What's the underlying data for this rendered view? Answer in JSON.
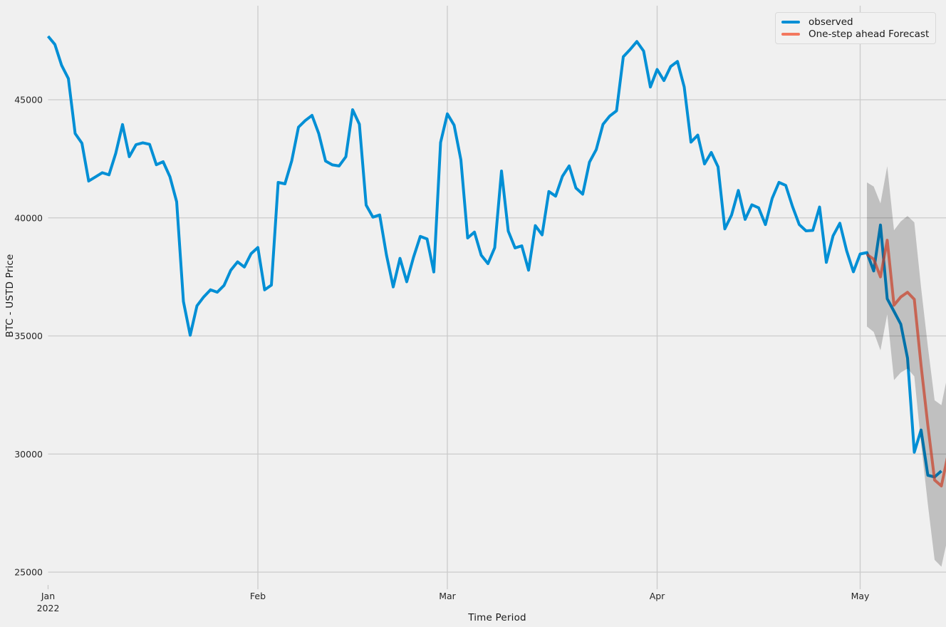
{
  "figure": {
    "background": "#f0f0f0",
    "grid_color": "#cbcbcb",
    "tick_color": "#262626",
    "label_color": "#1a1a1a"
  },
  "legend": {
    "position": "upper right",
    "items": [
      {
        "label": "observed",
        "color": "#008fd5"
      },
      {
        "label": "One-step ahead Forecast",
        "color": "#f3785f"
      }
    ]
  },
  "chart_data": {
    "type": "line",
    "title": "",
    "xlabel": "Time Period",
    "ylabel": "BTC - USTD Price",
    "grid": true,
    "legend_position": "upper right",
    "x_unit": "days since 2022-01-01",
    "xlim": [
      0,
      133
    ],
    "ylim": [
      24457,
      48982
    ],
    "x_ticks": [
      {
        "day": 0,
        "label": "Jan",
        "sublabel": "2022"
      },
      {
        "day": 31,
        "label": "Feb"
      },
      {
        "day": 59,
        "label": "Mar"
      },
      {
        "day": 90,
        "label": "Apr"
      },
      {
        "day": 120,
        "label": "May"
      }
    ],
    "y_ticks": [
      25000,
      30000,
      35000,
      40000,
      45000
    ],
    "series": [
      {
        "name": "observed",
        "color": "#008fd5",
        "width": 4,
        "start_day": 0,
        "values": [
          47687,
          47345,
          46458,
          45897,
          43569,
          43160,
          41557,
          41733,
          41911,
          41821,
          42735,
          43949,
          42591,
          43099,
          43177,
          43113,
          42250,
          42375,
          41744,
          40680,
          36457,
          35030,
          36276,
          36654,
          36954,
          36852,
          37138,
          37784,
          38138,
          37917,
          38483,
          38743,
          36952,
          37154,
          41501,
          41441,
          42412,
          43840,
          44118,
          44338,
          43565,
          42407,
          42244,
          42197,
          42586,
          44578,
          43961,
          40538,
          40030,
          40122,
          38431,
          37075,
          38286,
          37296,
          38332,
          39214,
          39105,
          37709,
          43193,
          44404,
          43924,
          42454,
          39148,
          39397,
          38420,
          38062,
          38737,
          41982,
          39437,
          38730,
          38814,
          37785,
          39671,
          39280,
          41114,
          40918,
          41758,
          42201,
          41262,
          41002,
          42358,
          42892,
          43960,
          44313,
          44533,
          46821,
          47128,
          47465,
          47062,
          45539,
          46282,
          45811,
          46407,
          46622,
          45544,
          43206,
          43503,
          42282,
          42768,
          42158,
          39533,
          40123,
          41160,
          39935,
          40553,
          40424,
          39716,
          40826,
          41502,
          41374,
          40480,
          39714,
          39450,
          39469,
          40458,
          38117,
          39241,
          39773,
          38609,
          37714,
          38469,
          38529,
          37750,
          39698,
          36575,
          36040,
          35501,
          34059,
          30077,
          31017,
          29103,
          29029,
          29283
        ]
      },
      {
        "name": "One-step ahead Forecast",
        "color": "rgba(252,79,48,0.7)",
        "width": 4,
        "start_day": 121,
        "values": [
          38450,
          38250,
          37500,
          39050,
          36300,
          36650,
          36850,
          36550,
          33750,
          31220,
          28900,
          28650,
          30000
        ]
      }
    ],
    "confidence_band": {
      "series": "One-step ahead Forecast",
      "color": "rgba(0,0,0,0.2)",
      "start_day": 121,
      "lower": [
        35400,
        35170,
        34390,
        35910,
        33130,
        33450,
        33620,
        33290,
        30450,
        27880,
        25520,
        25230,
        26540
      ],
      "upper": [
        41500,
        41330,
        40610,
        42190,
        39470,
        39850,
        40080,
        39810,
        37050,
        34560,
        32280,
        32070,
        33460
      ]
    }
  }
}
